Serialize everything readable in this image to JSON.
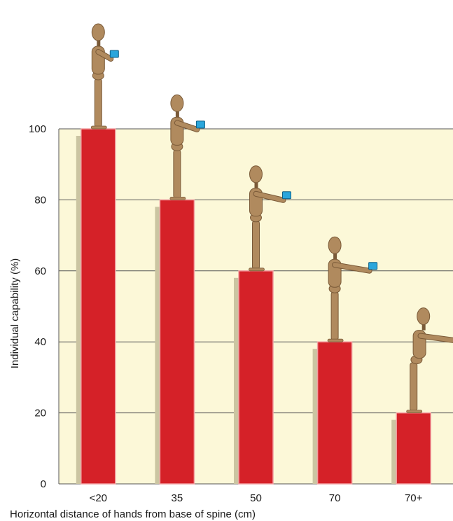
{
  "chart_data": {
    "type": "bar",
    "categories": [
      "<20",
      "35",
      "50",
      "70",
      "70+"
    ],
    "values": [
      100,
      80,
      60,
      40,
      20
    ],
    "xlabel": "Horizontal distance of hands from base of spine (cm)",
    "ylabel": "Individual capability (%)",
    "ylim": [
      0,
      100
    ],
    "yticks": [
      0,
      20,
      40,
      60,
      80,
      100
    ],
    "grid": true,
    "colors": {
      "plot_background": "#fcf8d8",
      "bar": "#d52128",
      "bar_highlight": "#f2a0a2",
      "bar_shadow": "#cbc5a2",
      "gridline": "#555555",
      "figure_wood": "#b08a5e",
      "figure_wood_dark": "#7a5a38",
      "box": "#2aa6dc"
    },
    "decorations": "wooden mannequin figure standing on each bar, holding a small blue box at increasing arm extension"
  }
}
